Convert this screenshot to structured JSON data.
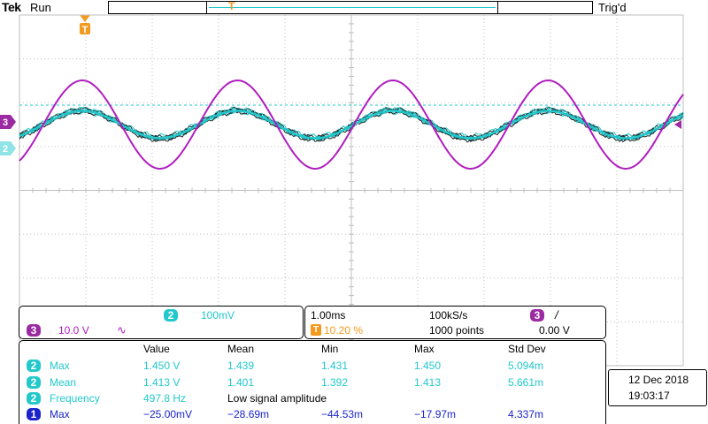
{
  "header": {
    "brand": "Tek",
    "run_state": "Run",
    "trigger_state": "Trig'd"
  },
  "channel_markers": {
    "ch3": "3",
    "ch2": "2",
    "trigger": "T"
  },
  "scope_colors": {
    "ch1": "#1a24c8",
    "ch2": "#22c8cc",
    "ch3": "#b01dbf",
    "trigger": "#f39a1e",
    "grid": "#bfbfbf",
    "trace_overlay": "#222222"
  },
  "channel_panel": {
    "ch2_id": "2",
    "ch2_scale": "100mV",
    "ch3_id": "3",
    "ch3_scale": "10.0 V",
    "ch3_coupling_icon": "∿"
  },
  "timebase_panel": {
    "time_div": "1.00ms",
    "sample_rate": "100kS/s",
    "trigger_pos_icon": "T",
    "trigger_pos": "10.20 %",
    "record_length": "1000 points",
    "trig_source": "3",
    "trig_slope_icon": "/",
    "trig_level": "0.00 V"
  },
  "measurements": {
    "headers": [
      "Value",
      "Mean",
      "Min",
      "Max",
      "Std Dev"
    ],
    "rows": [
      {
        "ch": "2",
        "name": "Max",
        "value": "1.450 V",
        "mean": "1.439",
        "min": "1.431",
        "max": "1.450",
        "std": "5.094m"
      },
      {
        "ch": "2",
        "name": "Mean",
        "value": "1.413 V",
        "mean": "1.401",
        "min": "1.392",
        "max": "1.413",
        "std": "5.661m"
      },
      {
        "ch": "2",
        "name": "Frequency",
        "value": "497.8 Hz",
        "mean": "Low signal amplitude",
        "min": "",
        "max": "",
        "std": ""
      },
      {
        "ch": "1",
        "name": "Max",
        "value": "−25.00mV",
        "mean": "−28.69m",
        "min": "−44.53m",
        "max": "−17.97m",
        "std": "4.337m"
      }
    ]
  },
  "datetime": {
    "date": "12 Dec  2018",
    "time": "19:03:17"
  }
}
